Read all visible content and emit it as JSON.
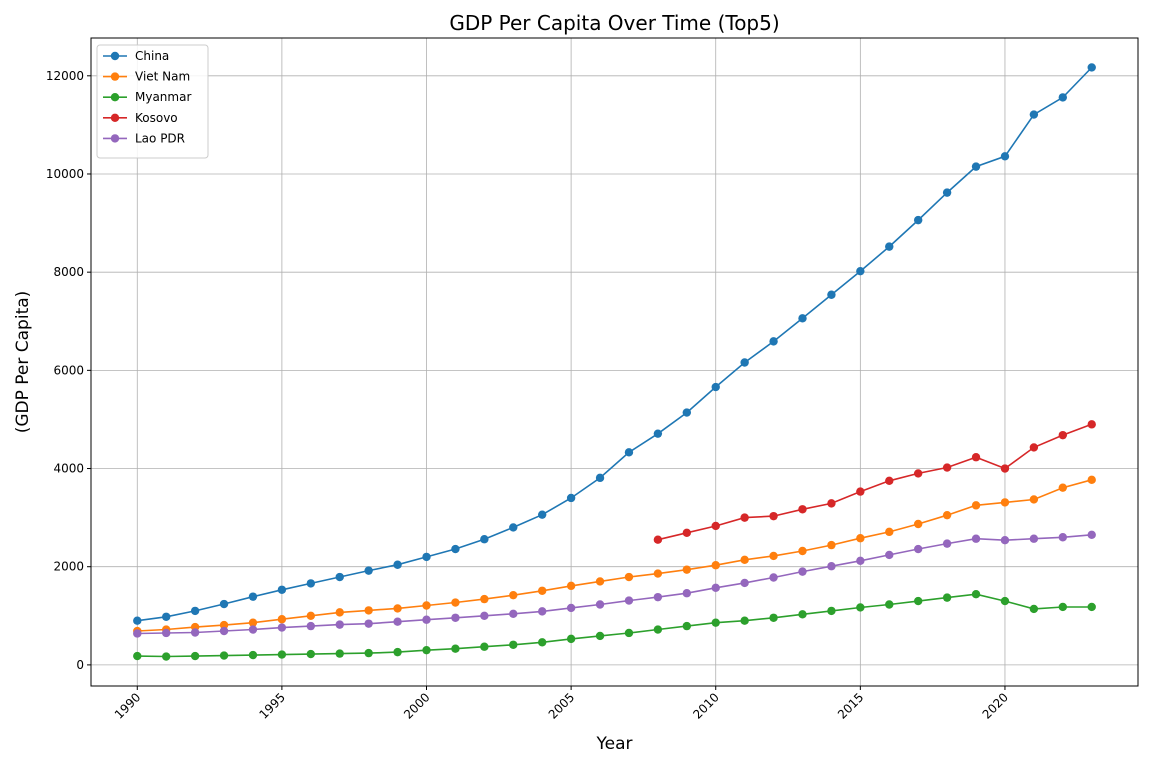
{
  "chart_data": {
    "type": "line",
    "title": "GDP Per Capita Over Time (Top5)",
    "xlabel": "Year",
    "ylabel": "(GDP Per Capita)",
    "xlim": [
      1988.4,
      2024.6
    ],
    "ylim": [
      -430,
      12770
    ],
    "xticks": [
      1990,
      1995,
      2000,
      2005,
      2010,
      2015,
      2020
    ],
    "yticks": [
      0,
      2000,
      4000,
      6000,
      8000,
      10000,
      12000
    ],
    "grid": true,
    "legend_position": "top-left",
    "series": [
      {
        "name": "China",
        "color": "#1f77b4",
        "x": [
          1990,
          1991,
          1992,
          1993,
          1994,
          1995,
          1996,
          1997,
          1998,
          1999,
          2000,
          2001,
          2002,
          2003,
          2004,
          2005,
          2006,
          2007,
          2008,
          2009,
          2010,
          2011,
          2012,
          2013,
          2014,
          2015,
          2016,
          2017,
          2018,
          2019,
          2020,
          2021,
          2022,
          2023
        ],
        "values": [
          900,
          980,
          1100,
          1240,
          1390,
          1530,
          1660,
          1790,
          1920,
          2040,
          2200,
          2360,
          2560,
          2800,
          3060,
          3400,
          3810,
          4330,
          4710,
          5140,
          5660,
          6160,
          6590,
          7060,
          7540,
          8020,
          8520,
          9060,
          9620,
          10150,
          10360,
          11210,
          11560,
          12170
        ]
      },
      {
        "name": "Viet Nam",
        "color": "#ff7f0e",
        "x": [
          1990,
          1991,
          1992,
          1993,
          1994,
          1995,
          1996,
          1997,
          1998,
          1999,
          2000,
          2001,
          2002,
          2003,
          2004,
          2005,
          2006,
          2007,
          2008,
          2009,
          2010,
          2011,
          2012,
          2013,
          2014,
          2015,
          2016,
          2017,
          2018,
          2019,
          2020,
          2021,
          2022,
          2023
        ],
        "values": [
          690,
          720,
          770,
          810,
          860,
          930,
          1000,
          1070,
          1110,
          1150,
          1210,
          1270,
          1340,
          1420,
          1510,
          1610,
          1700,
          1790,
          1860,
          1940,
          2030,
          2140,
          2220,
          2320,
          2440,
          2580,
          2710,
          2870,
          3050,
          3250,
          3310,
          3370,
          3610,
          3770
        ]
      },
      {
        "name": "Myanmar",
        "color": "#2ca02c",
        "x": [
          1990,
          1991,
          1992,
          1993,
          1994,
          1995,
          1996,
          1997,
          1998,
          1999,
          2000,
          2001,
          2002,
          2003,
          2004,
          2005,
          2006,
          2007,
          2008,
          2009,
          2010,
          2011,
          2012,
          2013,
          2014,
          2015,
          2016,
          2017,
          2018,
          2019,
          2020,
          2021,
          2022,
          2023
        ],
        "values": [
          180,
          170,
          180,
          190,
          200,
          210,
          220,
          230,
          240,
          260,
          300,
          330,
          370,
          410,
          460,
          530,
          590,
          650,
          720,
          790,
          860,
          900,
          960,
          1030,
          1100,
          1170,
          1230,
          1300,
          1370,
          1440,
          1300,
          1140,
          1180,
          1180
        ]
      },
      {
        "name": "Kosovo",
        "color": "#d62728",
        "x": [
          2008,
          2009,
          2010,
          2011,
          2012,
          2013,
          2014,
          2015,
          2016,
          2017,
          2018,
          2019,
          2020,
          2021,
          2022,
          2023
        ],
        "values": [
          2550,
          2690,
          2830,
          3000,
          3030,
          3170,
          3290,
          3530,
          3750,
          3900,
          4020,
          4230,
          4000,
          4430,
          4680,
          4900
        ]
      },
      {
        "name": "Lao PDR",
        "color": "#9467bd",
        "x": [
          1990,
          1991,
          1992,
          1993,
          1994,
          1995,
          1996,
          1997,
          1998,
          1999,
          2000,
          2001,
          2002,
          2003,
          2004,
          2005,
          2006,
          2007,
          2008,
          2009,
          2010,
          2011,
          2012,
          2013,
          2014,
          2015,
          2016,
          2017,
          2018,
          2019,
          2020,
          2021,
          2022,
          2023
        ],
        "values": [
          640,
          650,
          660,
          690,
          720,
          760,
          790,
          820,
          840,
          880,
          920,
          960,
          1000,
          1040,
          1090,
          1160,
          1230,
          1310,
          1380,
          1460,
          1570,
          1670,
          1780,
          1900,
          2010,
          2120,
          2240,
          2360,
          2470,
          2570,
          2540,
          2570,
          2600,
          2650
        ]
      }
    ]
  }
}
